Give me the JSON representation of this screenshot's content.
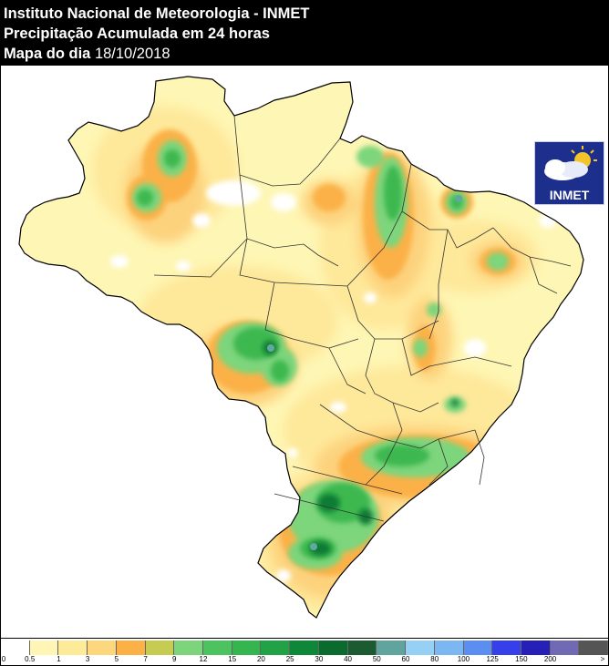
{
  "header": {
    "line1": "Instituto Nacional de Meteorologia - INMET",
    "line2": "Precipitação Acumulada em 24 horas",
    "line3_label": "Mapa do dia",
    "line3_date": "18/10/2018"
  },
  "logo": {
    "text": "INMET",
    "icon": "sun-cloud-icon"
  },
  "colors": {
    "land_base": "#fef6b4",
    "light_yellow": "#fee89a",
    "orange_light": "#fdd27d",
    "orange": "#fbb146",
    "green_light": "#7dd57b",
    "green": "#3cb850",
    "green_mid": "#21a345",
    "green_dark": "#0c7b35",
    "green_deep": "#1c5c30",
    "teal": "#62a8a2",
    "boundary": "#333333"
  },
  "legend": {
    "labels": [
      "0",
      "0.5",
      "1",
      "3",
      "5",
      "7",
      "9",
      "12",
      "15",
      "20",
      "25",
      "30",
      "40",
      "50",
      "60",
      "80",
      "100",
      "125",
      "150",
      "200",
      ">"
    ],
    "colors": [
      "#ffffff",
      "#fff6b4",
      "#feeb9a",
      "#fdd77d",
      "#fbb146",
      "#c5cc51",
      "#7dd57b",
      "#4cc35f",
      "#34b54d",
      "#21a345",
      "#0f8738",
      "#0b6a2d",
      "#1b5b31",
      "#5fa59e",
      "#95d1f4",
      "#7bb7f0",
      "#5a8ef0",
      "#3540ea",
      "#2620b8",
      "#6f6ab3",
      "#555555"
    ]
  }
}
